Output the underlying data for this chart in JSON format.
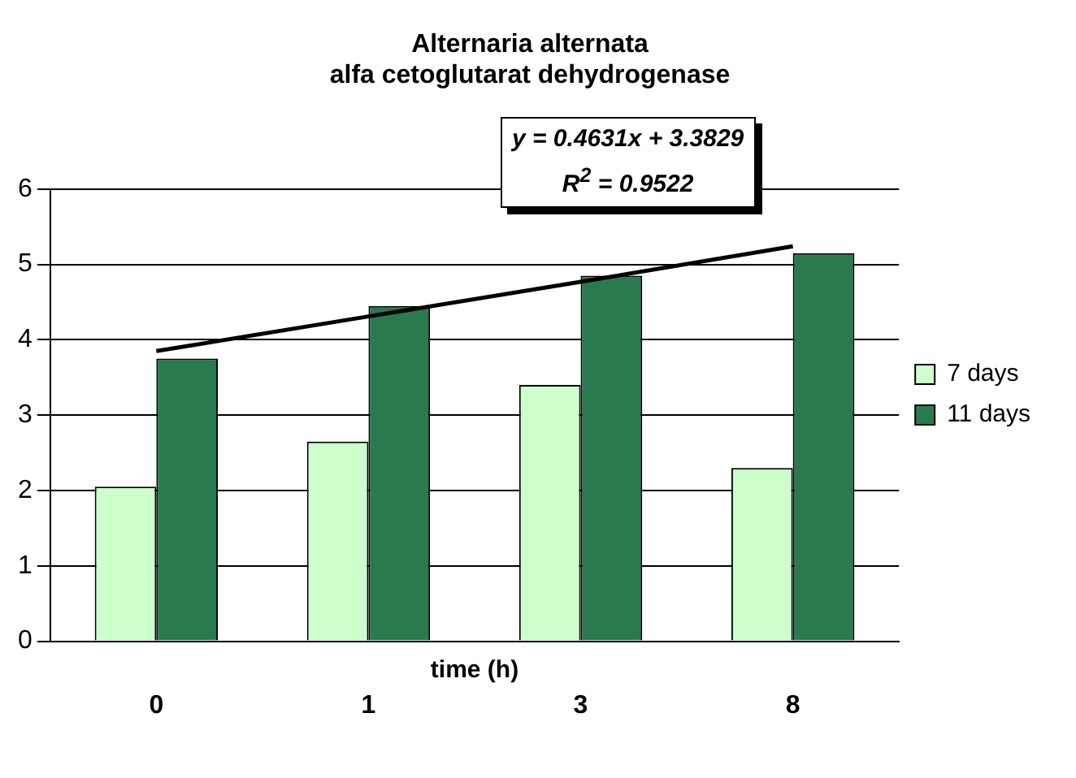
{
  "chart_data": {
    "type": "bar",
    "title": "Alternaria alternata\nalfa cetoglutarat dehydrogenase",
    "xlabel": "time (h)",
    "categories": [
      "0",
      "1",
      "3",
      "8"
    ],
    "series": [
      {
        "name": "7 days",
        "color": "#ccffcc",
        "values": [
          2.05,
          2.65,
          3.4,
          2.3
        ]
      },
      {
        "name": "11 days",
        "color": "#2a7a50",
        "values": [
          3.75,
          4.45,
          4.85,
          5.15
        ]
      },
      {
        "type": "line",
        "color": "#000000",
        "values": [
          3.85,
          4.31,
          4.77,
          5.24
        ]
      }
    ],
    "ylim": [
      0,
      6
    ],
    "yticks": [
      0,
      1,
      2,
      3,
      4,
      5,
      6
    ],
    "grid": "y",
    "legend": "right",
    "marker": "none",
    "annotations": [
      "y = 0.4631x + 3.3829",
      "R$^{2}$ = 0.9522"
    ]
  }
}
